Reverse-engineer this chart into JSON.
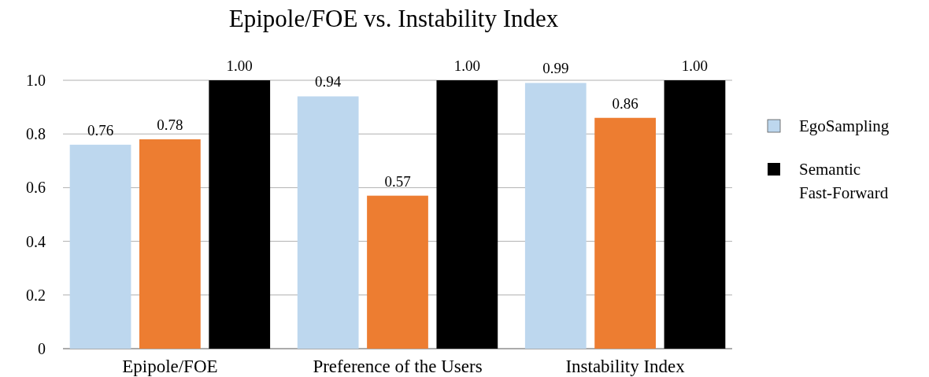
{
  "chart_data": {
    "type": "bar",
    "title": "Epipole/FOE vs. Instability Index",
    "categories": [
      "Epipole/FOE",
      "Preference of the Users",
      "Instability Index"
    ],
    "series": [
      {
        "name": "EgoSampling",
        "color": "#bdd7ee",
        "values": [
          0.76,
          0.94,
          0.99
        ],
        "value_labels": [
          "0.76",
          "0.94",
          "0.99"
        ]
      },
      {
        "color": "#ed7d31",
        "values": [
          0.78,
          0.57,
          0.86
        ],
        "value_labels": [
          "0.78",
          "0.57",
          "0.86"
        ]
      },
      {
        "name": "Semantic Fast-Forward",
        "color": "#000000",
        "values": [
          1.0,
          1.0,
          1.0
        ],
        "value_labels": [
          "1.00",
          "1.00",
          "1.00"
        ]
      }
    ],
    "ylim": [
      0,
      1
    ],
    "yticks": [
      0,
      0.2,
      0.4,
      0.6,
      0.8,
      {
        "value": 1,
        "label": "1.0"
      }
    ],
    "grid": "y",
    "legend": "right"
  }
}
